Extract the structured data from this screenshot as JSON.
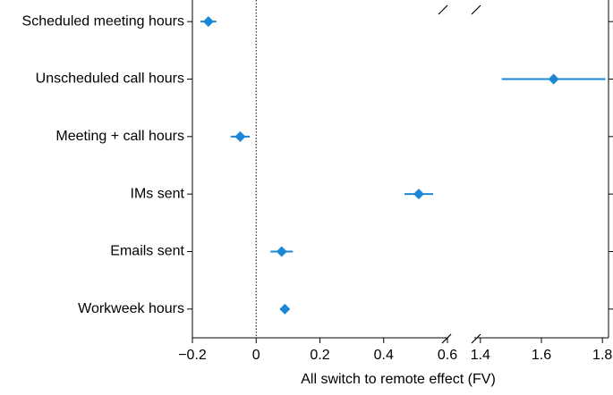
{
  "chart_data": {
    "type": "forest",
    "xlabel": "All switch to remote effect (FV)",
    "categories": [
      "Scheduled meeting hours",
      "Unscheduled call hours",
      "Meeting + call hours",
      "IMs sent",
      "Emails sent",
      "Workweek hours"
    ],
    "series": [
      {
        "color": "#1b87d6",
        "values": [
          -0.15,
          1.64,
          -0.05,
          0.51,
          0.08,
          0.09
        ],
        "errors": [
          0.025,
          0.17,
          0.03,
          0.045,
          0.035,
          0.005
        ]
      }
    ],
    "xlim": [
      -0.2,
      0.6
    ],
    "xticks": [
      {
        "value": -0.2,
        "label": "−0.2"
      },
      0,
      0.2,
      0.4,
      0.6
    ],
    "x2lim": [
      1.38,
      1.82
    ],
    "x2ticks": [
      1.4,
      1.6,
      1.8
    ],
    "reference_line": 0
  }
}
